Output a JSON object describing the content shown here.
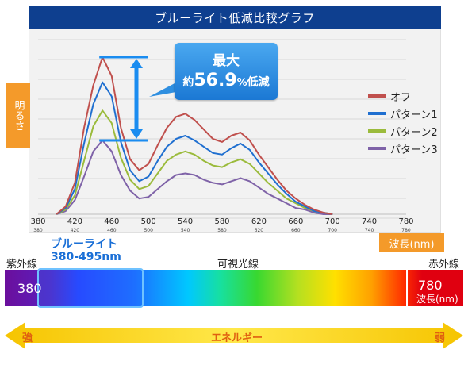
{
  "title": "ブルーライト低減比較グラフ",
  "ylabel": "明るさ",
  "xunit": "波長(nm)",
  "callout": {
    "line1": "最大",
    "prefix": "約",
    "value": "56.9",
    "pct": "%",
    "suffix": "低減"
  },
  "blue_band": {
    "line1": "ブルーライト",
    "line2": "380-495nm"
  },
  "spectrum": {
    "left_label": "紫外線",
    "center_label": "可視光線",
    "right_label": "赤外線",
    "start_num": "380",
    "end_num": "780",
    "end_unit": "波長(nm)"
  },
  "energy": {
    "strong": "強",
    "label": "エネルギー",
    "weak": "弱"
  },
  "colors": {
    "オフ": "#c0504d",
    "パターン1": "#1f6fd0",
    "パターン2": "#9bbb3c",
    "パターン3": "#7f63a8"
  },
  "chart_data": {
    "type": "line",
    "title": "ブルーライト低減比較グラフ",
    "xlabel": "波長(nm)",
    "ylabel": "明るさ",
    "xlim": [
      380,
      780
    ],
    "ylim": [
      0,
      100
    ],
    "xticks_major": [
      "380",
      "420",
      "460",
      "500",
      "540",
      "580",
      "620",
      "660",
      "700",
      "740",
      "780"
    ],
    "xticks_minor": [
      "380",
      "420",
      "460",
      "500",
      "540",
      "580",
      "620",
      "660",
      "700",
      "740",
      "780"
    ],
    "x": [
      400,
      410,
      420,
      430,
      440,
      450,
      460,
      470,
      480,
      490,
      500,
      510,
      520,
      530,
      540,
      550,
      560,
      570,
      580,
      590,
      600,
      610,
      620,
      630,
      640,
      650,
      660,
      670,
      680,
      690,
      700
    ],
    "series": [
      {
        "name": "オフ",
        "values": [
          0,
          5,
          20,
          55,
          82,
          100,
          88,
          55,
          35,
          28,
          32,
          44,
          55,
          62,
          64,
          60,
          54,
          48,
          46,
          50,
          52,
          47,
          38,
          30,
          22,
          15,
          10,
          6,
          3,
          1,
          0
        ]
      },
      {
        "name": "パターン1",
        "values": [
          0,
          4,
          16,
          45,
          70,
          84,
          75,
          46,
          28,
          21,
          24,
          34,
          43,
          48,
          50,
          47,
          43,
          39,
          38,
          42,
          45,
          41,
          33,
          26,
          19,
          13,
          8,
          5,
          2,
          1,
          0
        ]
      },
      {
        "name": "パターン2",
        "values": [
          0,
          3,
          12,
          34,
          56,
          66,
          58,
          36,
          22,
          16,
          18,
          26,
          34,
          38,
          40,
          38,
          34,
          31,
          30,
          33,
          35,
          32,
          26,
          20,
          15,
          10,
          7,
          4,
          2,
          1,
          0
        ]
      },
      {
        "name": "パターン3",
        "values": [
          0,
          2,
          9,
          24,
          40,
          47,
          40,
          25,
          15,
          10,
          11,
          16,
          21,
          25,
          26,
          25,
          22,
          20,
          19,
          21,
          23,
          21,
          17,
          13,
          10,
          7,
          4,
          3,
          1,
          0,
          0
        ]
      }
    ],
    "legend_position": "right",
    "grid": true
  }
}
